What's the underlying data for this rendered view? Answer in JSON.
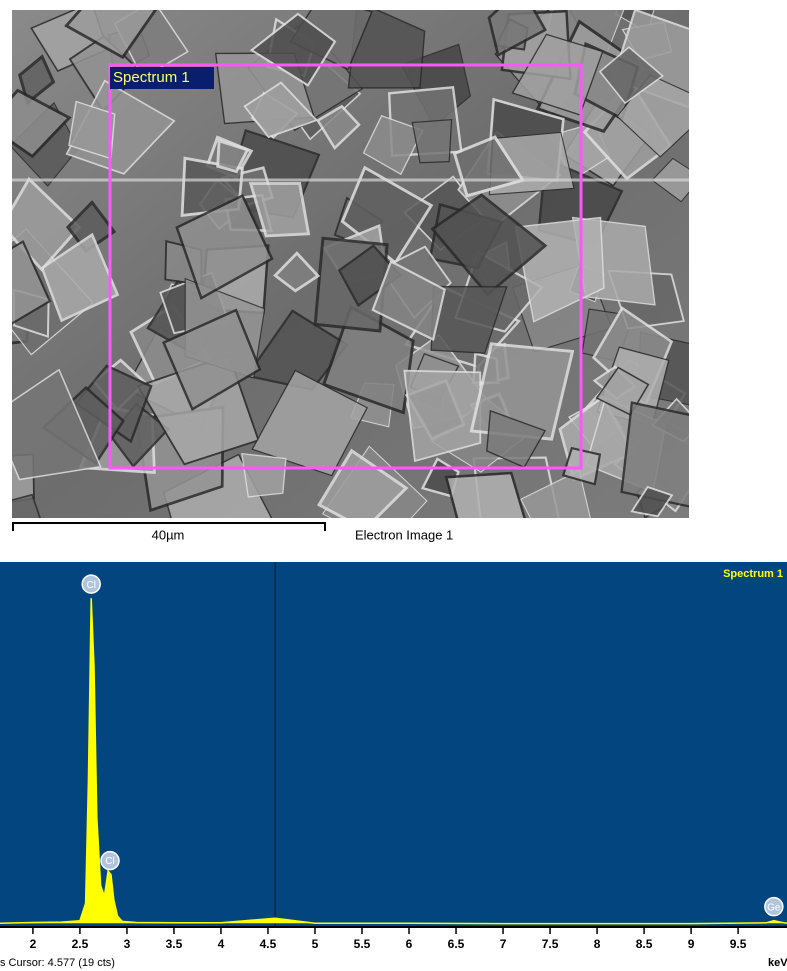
{
  "image": {
    "region_label": "Spectrum 1",
    "scale_bar": "40µm",
    "caption": "Electron Image 1"
  },
  "chart_data": {
    "type": "area",
    "x": [
      1.65,
      2.0,
      2.3,
      2.5,
      2.56,
      2.59,
      2.62,
      2.65,
      2.68,
      2.72,
      2.76,
      2.8,
      2.83,
      2.86,
      2.9,
      2.95,
      3.1,
      3.5,
      4.0,
      4.577,
      5.0,
      6.0,
      7.0,
      8.0,
      9.0,
      9.8,
      9.88,
      9.95,
      10.02
    ],
    "series": [
      {
        "name": "Spectrum 1",
        "color": "#ffff00",
        "values": [
          5,
          7,
          8,
          12,
          60,
          400,
          908,
          720,
          300,
          110,
          80,
          150,
          140,
          70,
          25,
          10,
          7,
          6,
          6,
          19,
          5,
          5,
          4,
          4,
          4,
          6,
          12,
          8,
          5
        ]
      }
    ],
    "xlim": [
      1.65,
      10.02
    ],
    "ylim": [
      0,
      1000
    ],
    "xticks": [
      2,
      2.5,
      3,
      3.5,
      4,
      4.5,
      5,
      5.5,
      6,
      6.5,
      7,
      7.5,
      8,
      8.5,
      9,
      9.5
    ],
    "xlabel": "keV",
    "cursor": 4.577,
    "annotations": [
      {
        "text": "Cl",
        "x": 2.62
      },
      {
        "text": "Cl",
        "x": 2.82
      },
      {
        "text": "Ge",
        "x": 9.88
      }
    ],
    "status": "s Cursor: 4.577 (19 cts)"
  }
}
